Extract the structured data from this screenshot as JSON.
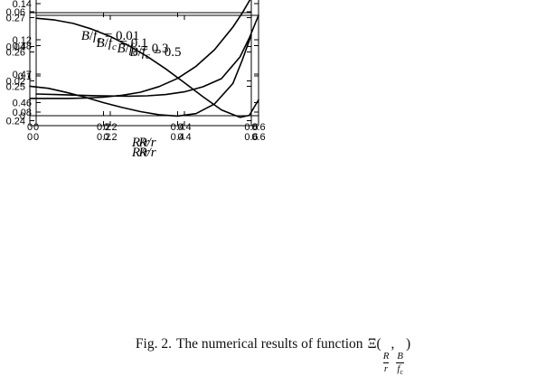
{
  "figure": {
    "caption": {
      "fig_label": "Fig. 2.",
      "body": "The numerical results of function",
      "function_symbol": "Ξ",
      "open_paren": "(",
      "arg1_num": "R",
      "arg1_den": "r",
      "comma": ",",
      "arg2_num": "B",
      "arg2_den": "f",
      "arg2_den_sub": "c",
      "close_paren": ")"
    }
  },
  "chart_data": [
    {
      "type": "line",
      "annotation": {
        "num": "B",
        "den": "f",
        "den_sub": "c",
        "value": "0.01",
        "text": "B/f_c = 0.01"
      },
      "xlabel": "R/r",
      "ylabel": "",
      "grid": false,
      "xlim": [
        0,
        0.6
      ],
      "ylim": [
        0,
        0.07
      ],
      "xticks": {
        "values": [
          0,
          0.2,
          0.4,
          0.6
        ],
        "labels": [
          "0",
          "0.2",
          "0.4",
          "0.6"
        ]
      },
      "yticks": {
        "values": [
          0,
          0.02,
          0.04,
          0.06
        ],
        "labels": [
          "0",
          "0.02",
          "0.04",
          "0.06"
        ]
      },
      "x": [
        0,
        0.05,
        0.1,
        0.15,
        0.2,
        0.25,
        0.3,
        0.35,
        0.4,
        0.45,
        0.5,
        0.55,
        0.575,
        0.6
      ],
      "y": [
        0.01,
        0.01,
        0.01,
        0.0102,
        0.0107,
        0.0118,
        0.0136,
        0.0168,
        0.0215,
        0.0285,
        0.0381,
        0.0512,
        0.0592,
        0.0683
      ],
      "line_color": "#000000"
    },
    {
      "type": "line",
      "annotation": {
        "num": "B",
        "den": "f",
        "den_sub": "c",
        "value": "0.1",
        "text": "B/f_c = 0.1"
      },
      "xlabel": "R/r",
      "ylabel": "",
      "grid": false,
      "xlim": [
        0,
        0.6
      ],
      "ylim": [
        0.078,
        0.145
      ],
      "xticks": {
        "values": [
          0,
          0.2,
          0.4,
          0.6
        ],
        "labels": [
          "0",
          "0.2",
          "0.4",
          "0.6"
        ]
      },
      "yticks": {
        "values": [
          0.08,
          0.1,
          0.12,
          0.14
        ],
        "labels": [
          "0.08",
          "0.1",
          "0.12",
          "0.14"
        ]
      },
      "x": [
        0,
        0.05,
        0.1,
        0.15,
        0.2,
        0.25,
        0.3,
        0.35,
        0.4,
        0.45,
        0.5,
        0.55,
        0.575,
        0.6
      ],
      "y": [
        0.09,
        0.0897,
        0.0894,
        0.0891,
        0.0889,
        0.0888,
        0.089,
        0.0897,
        0.0912,
        0.094,
        0.0985,
        0.1105,
        0.121,
        0.1335
      ],
      "line_color": "#000000"
    },
    {
      "type": "line",
      "annotation": {
        "num": "B",
        "den": "f",
        "den_sub": "c",
        "value": "0.3",
        "text": "B/f_c = 0.3"
      },
      "xlabel": "R/r",
      "ylabel": "",
      "grid": false,
      "xlim": [
        0,
        0.6
      ],
      "ylim": [
        0.2385,
        0.2715
      ],
      "xticks": {
        "values": [
          0,
          0.2,
          0.4,
          0.6
        ],
        "labels": [
          "0",
          "0.2",
          "0.4",
          "0.6"
        ]
      },
      "yticks": {
        "values": [
          0.24,
          0.25,
          0.26,
          0.27
        ],
        "labels": [
          "0.24",
          "0.25",
          "0.26",
          "0.27"
        ]
      },
      "x": [
        0,
        0.05,
        0.1,
        0.15,
        0.2,
        0.25,
        0.3,
        0.35,
        0.4,
        0.45,
        0.5,
        0.55,
        0.575,
        0.6
      ],
      "y": [
        0.25,
        0.2494,
        0.2482,
        0.2468,
        0.2452,
        0.2438,
        0.2426,
        0.2417,
        0.2413,
        0.242,
        0.2448,
        0.2508,
        0.2575,
        0.265
      ],
      "line_color": "#000000"
    },
    {
      "type": "line",
      "annotation": {
        "num": "B",
        "den": "f",
        "den_sub": "c",
        "value": "0.5",
        "text": "B/f_c = 0.5"
      },
      "xlabel": "R/r",
      "ylabel": "",
      "grid": false,
      "xlim": [
        0,
        0.6
      ],
      "ylim": [
        0.452,
        0.4905
      ],
      "xticks": {
        "values": [
          0,
          0.2,
          0.4,
          0.6
        ],
        "labels": [
          "0",
          "0.2",
          "0.4",
          "0.6"
        ]
      },
      "yticks": {
        "values": [
          0.46,
          0.47,
          0.48
        ],
        "labels": [
          "0.46",
          "0.47",
          "0.48"
        ]
      },
      "x": [
        0,
        0.05,
        0.1,
        0.15,
        0.2,
        0.25,
        0.3,
        0.35,
        0.4,
        0.45,
        0.5,
        0.55,
        0.575,
        0.6
      ],
      "y": [
        0.4895,
        0.4889,
        0.4877,
        0.4857,
        0.4831,
        0.4799,
        0.4761,
        0.4718,
        0.467,
        0.4621,
        0.4575,
        0.4549,
        0.4556,
        0.461
      ],
      "line_color": "#000000"
    }
  ]
}
